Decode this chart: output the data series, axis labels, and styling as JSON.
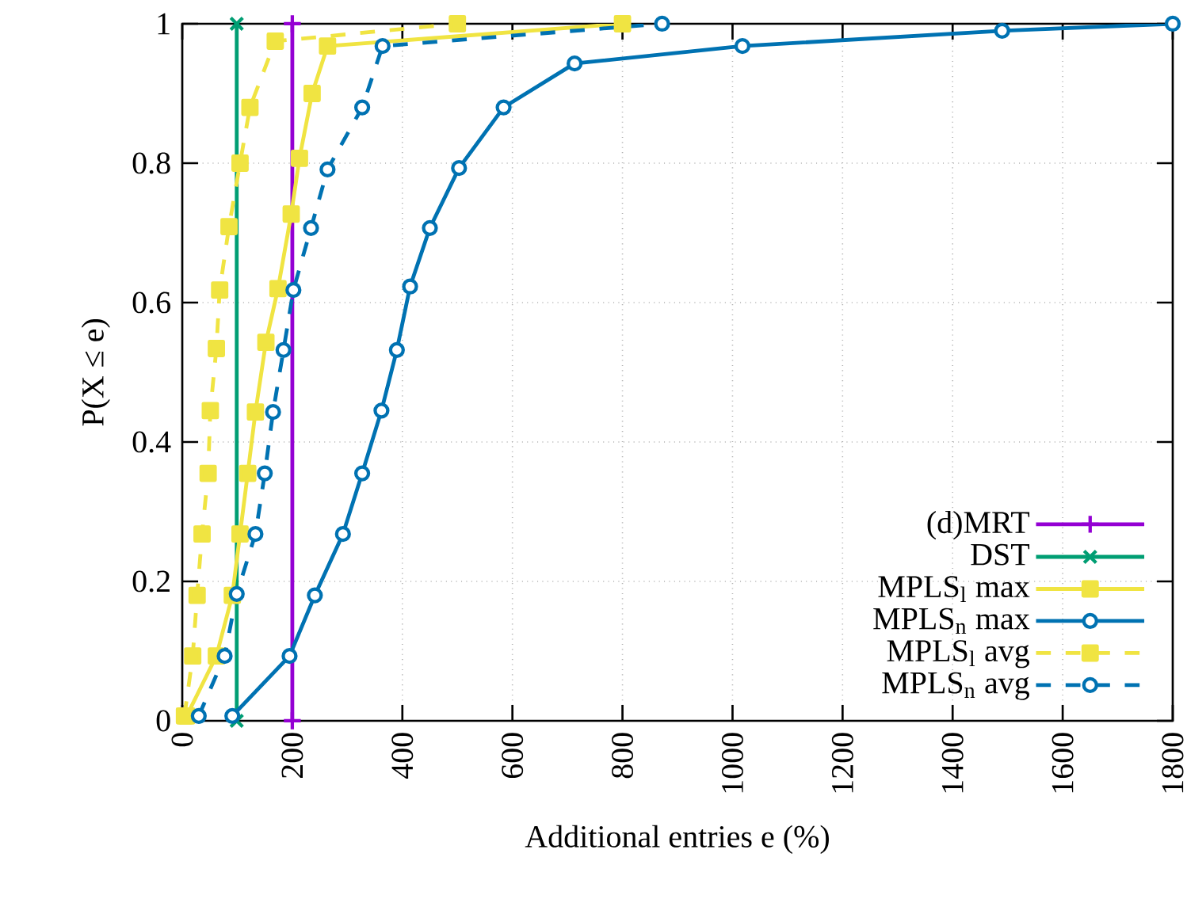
{
  "chart_data": {
    "type": "line",
    "xlabel": "Additional entries e (%)",
    "ylabel": "P(X ≤ e)",
    "xlim": [
      0,
      1800
    ],
    "ylim": [
      0,
      1
    ],
    "xticks": [
      0,
      200,
      400,
      600,
      800,
      1000,
      1200,
      1400,
      1600,
      1800
    ],
    "yticks": [
      0,
      0.2,
      0.4,
      0.6,
      0.8,
      1
    ],
    "grid": true,
    "legend": "bottom right",
    "series": [
      {
        "name": "(d)MRT",
        "color": "#9400d3",
        "marker": "plus",
        "line_style": "solid",
        "x": [
          200,
          200
        ],
        "values": [
          0,
          1
        ]
      },
      {
        "name": "DST",
        "color": "#009e73",
        "marker": "cross",
        "line_style": "solid",
        "x": [
          99,
          99
        ],
        "values": [
          0,
          1
        ]
      },
      {
        "name": "MPLS$_{l}$ max",
        "color": "#f0e442",
        "marker": "square",
        "line_style": "solid",
        "x": [
          8,
          62,
          91,
          105,
          119,
          133,
          152,
          174,
          198,
          213,
          236,
          264,
          800
        ],
        "values": [
          0.007,
          0.093,
          0.18,
          0.268,
          0.355,
          0.443,
          0.543,
          0.62,
          0.727,
          0.807,
          0.9,
          0.968,
          1
        ]
      },
      {
        "name": "MPLS$_{n}$ max",
        "color": "#0072b2",
        "marker": "circle",
        "line_style": "solid",
        "x": [
          91,
          195,
          241,
          292,
          327,
          362,
          390,
          414,
          450,
          503,
          584,
          713,
          1018,
          1490,
          1800
        ],
        "values": [
          0.007,
          0.093,
          0.18,
          0.268,
          0.355,
          0.445,
          0.532,
          0.623,
          0.707,
          0.793,
          0.88,
          0.943,
          0.968,
          0.99,
          1
        ]
      },
      {
        "name": "MPLS$_{l}$ avg",
        "color": "#f0e442",
        "marker": "square",
        "line_style": "dashed",
        "x": [
          4,
          19,
          27,
          36,
          47,
          51,
          62,
          68,
          85,
          105,
          123,
          169,
          500
        ],
        "values": [
          0.007,
          0.093,
          0.18,
          0.268,
          0.355,
          0.445,
          0.534,
          0.618,
          0.709,
          0.8,
          0.88,
          0.975,
          1
        ]
      },
      {
        "name": "MPLS$_{n}$ avg",
        "color": "#0072b2",
        "marker": "circle",
        "line_style": "dashed",
        "x": [
          30,
          77,
          99,
          133,
          150,
          165,
          184,
          202,
          234,
          264,
          327,
          364,
          872
        ],
        "values": [
          0.007,
          0.093,
          0.182,
          0.268,
          0.355,
          0.443,
          0.532,
          0.618,
          0.707,
          0.791,
          0.88,
          0.968,
          1
        ]
      }
    ]
  }
}
